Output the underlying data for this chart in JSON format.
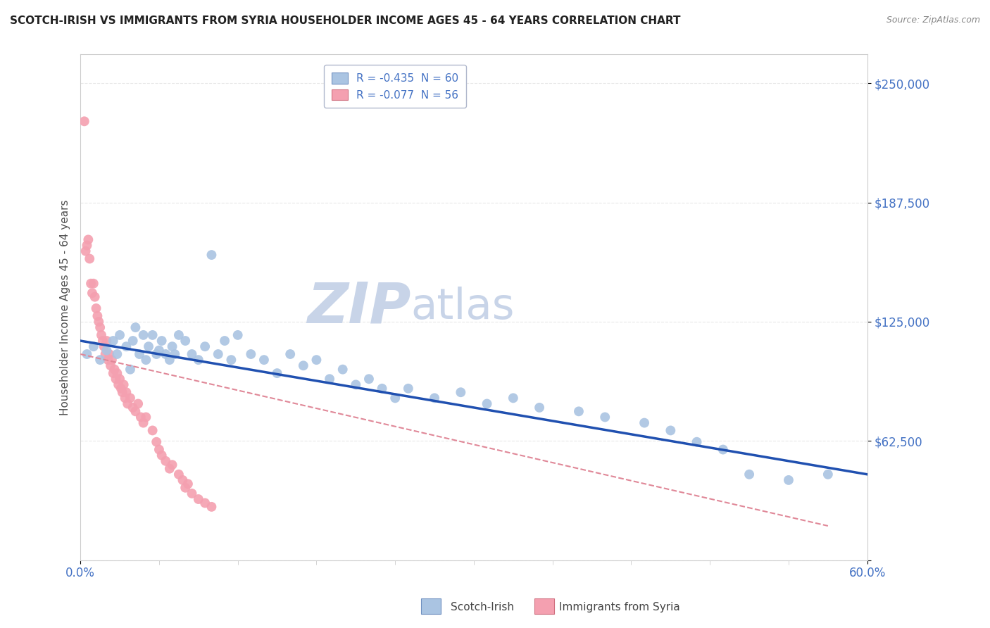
{
  "title": "SCOTCH-IRISH VS IMMIGRANTS FROM SYRIA HOUSEHOLDER INCOME AGES 45 - 64 YEARS CORRELATION CHART",
  "source": "Source: ZipAtlas.com",
  "ylabel": "Householder Income Ages 45 - 64 years",
  "xlim": [
    0.0,
    0.6
  ],
  "ylim": [
    0,
    265000
  ],
  "yticks": [
    0,
    62500,
    125000,
    187500,
    250000
  ],
  "ytick_labels": [
    "",
    "$62,500",
    "$125,000",
    "$187,500",
    "$250,000"
  ],
  "xtick_labels": [
    "0.0%",
    "60.0%"
  ],
  "legend_blue": "R = -0.435  N = 60",
  "legend_pink": "R = -0.077  N = 56",
  "series1_label": "Scotch-Irish",
  "series2_label": "Immigrants from Syria",
  "color_blue": "#aac4e2",
  "color_pink": "#f4a0b0",
  "line_blue": "#2050b0",
  "line_pink": "#e08898",
  "watermark_zip": "ZIP",
  "watermark_atlas": "atlas",
  "watermark_color_zip": "#c8d4e8",
  "watermark_color_atlas": "#c8d4e8",
  "background_color": "#ffffff",
  "grid_color": "#e8e8e8",
  "axis_color": "#cccccc",
  "title_color": "#222222",
  "label_color": "#4472c4",
  "scatter1_x": [
    0.005,
    0.01,
    0.015,
    0.02,
    0.025,
    0.028,
    0.03,
    0.035,
    0.038,
    0.04,
    0.042,
    0.045,
    0.048,
    0.05,
    0.052,
    0.055,
    0.058,
    0.06,
    0.062,
    0.065,
    0.068,
    0.07,
    0.072,
    0.075,
    0.08,
    0.085,
    0.09,
    0.095,
    0.1,
    0.105,
    0.11,
    0.115,
    0.12,
    0.13,
    0.14,
    0.15,
    0.16,
    0.17,
    0.18,
    0.19,
    0.2,
    0.21,
    0.22,
    0.23,
    0.24,
    0.25,
    0.27,
    0.29,
    0.31,
    0.33,
    0.35,
    0.38,
    0.4,
    0.43,
    0.45,
    0.47,
    0.49,
    0.51,
    0.54,
    0.57
  ],
  "scatter1_y": [
    108000,
    112000,
    105000,
    110000,
    115000,
    108000,
    118000,
    112000,
    100000,
    115000,
    122000,
    108000,
    118000,
    105000,
    112000,
    118000,
    108000,
    110000,
    115000,
    108000,
    105000,
    112000,
    108000,
    118000,
    115000,
    108000,
    105000,
    112000,
    160000,
    108000,
    115000,
    105000,
    118000,
    108000,
    105000,
    98000,
    108000,
    102000,
    105000,
    95000,
    100000,
    92000,
    95000,
    90000,
    85000,
    90000,
    85000,
    88000,
    82000,
    85000,
    80000,
    78000,
    75000,
    72000,
    68000,
    62000,
    58000,
    45000,
    42000,
    45000
  ],
  "scatter2_x": [
    0.003,
    0.004,
    0.005,
    0.006,
    0.007,
    0.008,
    0.009,
    0.01,
    0.011,
    0.012,
    0.013,
    0.014,
    0.015,
    0.016,
    0.017,
    0.018,
    0.019,
    0.02,
    0.021,
    0.022,
    0.023,
    0.024,
    0.025,
    0.026,
    0.027,
    0.028,
    0.029,
    0.03,
    0.031,
    0.032,
    0.033,
    0.034,
    0.035,
    0.036,
    0.038,
    0.04,
    0.042,
    0.044,
    0.046,
    0.048,
    0.05,
    0.055,
    0.058,
    0.06,
    0.062,
    0.065,
    0.068,
    0.07,
    0.075,
    0.078,
    0.08,
    0.082,
    0.085,
    0.09,
    0.095,
    0.1
  ],
  "scatter2_y": [
    230000,
    162000,
    165000,
    168000,
    158000,
    145000,
    140000,
    145000,
    138000,
    132000,
    128000,
    125000,
    122000,
    118000,
    115000,
    112000,
    108000,
    115000,
    105000,
    108000,
    102000,
    105000,
    98000,
    100000,
    95000,
    98000,
    92000,
    95000,
    90000,
    88000,
    92000,
    85000,
    88000,
    82000,
    85000,
    80000,
    78000,
    82000,
    75000,
    72000,
    75000,
    68000,
    62000,
    58000,
    55000,
    52000,
    48000,
    50000,
    45000,
    42000,
    38000,
    40000,
    35000,
    32000,
    30000,
    28000
  ],
  "blue_line_x0": 0.0,
  "blue_line_x1": 0.6,
  "blue_line_y0": 115000,
  "blue_line_y1": 45000,
  "pink_line_x0": 0.0,
  "pink_line_x1": 0.57,
  "pink_line_y0": 108000,
  "pink_line_y1": 18000
}
